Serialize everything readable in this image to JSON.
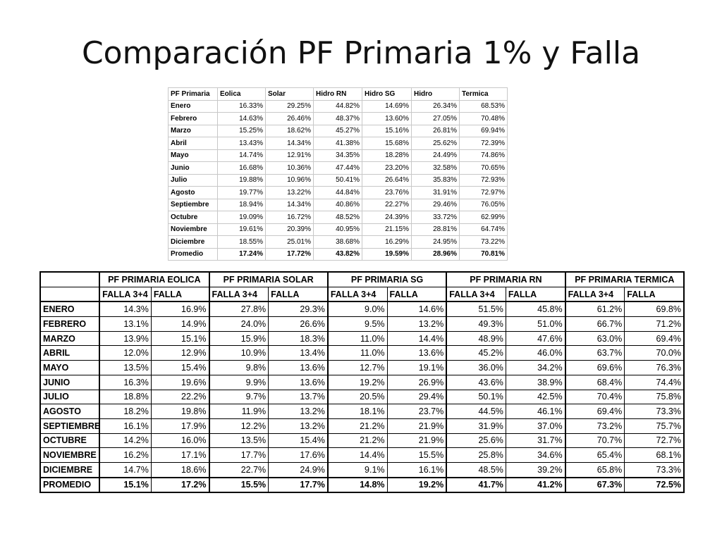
{
  "title": "Comparación PF Primaria 1% y Falla",
  "table1": {
    "headers": [
      "PF Primaria",
      "Eolica",
      "Solar",
      "Hidro RN",
      "Hidro SG",
      "Hidro",
      "Termica"
    ],
    "rows": [
      [
        "Enero",
        "16.33%",
        "29.25%",
        "44.82%",
        "14.69%",
        "26.34%",
        "68.53%"
      ],
      [
        "Febrero",
        "14.63%",
        "26.46%",
        "48.37%",
        "13.60%",
        "27.05%",
        "70.48%"
      ],
      [
        "Marzo",
        "15.25%",
        "18.62%",
        "45.27%",
        "15.16%",
        "26.81%",
        "69.94%"
      ],
      [
        "Abril",
        "13.43%",
        "14.34%",
        "41.38%",
        "15.68%",
        "25.62%",
        "72.39%"
      ],
      [
        "Mayo",
        "14.74%",
        "12.91%",
        "34.35%",
        "18.28%",
        "24.49%",
        "74.86%"
      ],
      [
        "Junio",
        "16.68%",
        "10.36%",
        "47.44%",
        "23.20%",
        "32.58%",
        "70.65%"
      ],
      [
        "Julio",
        "19.88%",
        "10.96%",
        "50.41%",
        "26.64%",
        "35.83%",
        "72.93%"
      ],
      [
        "Agosto",
        "19.77%",
        "13.22%",
        "44.84%",
        "23.76%",
        "31.91%",
        "72.97%"
      ],
      [
        "Septiembre",
        "18.94%",
        "14.34%",
        "40.86%",
        "22.27%",
        "29.46%",
        "76.05%"
      ],
      [
        "Octubre",
        "19.09%",
        "16.72%",
        "48.52%",
        "24.39%",
        "33.72%",
        "62.99%"
      ],
      [
        "Noviembre",
        "19.61%",
        "20.39%",
        "40.95%",
        "21.15%",
        "28.81%",
        "64.74%"
      ],
      [
        "Diciembre",
        "18.55%",
        "25.01%",
        "38.68%",
        "16.29%",
        "24.95%",
        "73.22%"
      ]
    ],
    "average": [
      "Promedio",
      "17.24%",
      "17.72%",
      "43.82%",
      "19.59%",
      "28.96%",
      "70.81%"
    ]
  },
  "table2": {
    "groups": [
      "PF PRIMARIA EOLICA",
      "PF PRIMARIA SOLAR",
      "PF PRIMARIA SG",
      "PF PRIMARIA RN",
      "PF PRIMARIA TERMICA"
    ],
    "subheaders": [
      "FALLA 3+4",
      "FALLA"
    ],
    "rows": [
      [
        "ENERO",
        "14.3%",
        "16.9%",
        "27.8%",
        "29.3%",
        "9.0%",
        "14.6%",
        "51.5%",
        "45.8%",
        "61.2%",
        "69.8%"
      ],
      [
        "FEBRERO",
        "13.1%",
        "14.9%",
        "24.0%",
        "26.6%",
        "9.5%",
        "13.2%",
        "49.3%",
        "51.0%",
        "66.7%",
        "71.2%"
      ],
      [
        "MARZO",
        "13.9%",
        "15.1%",
        "15.9%",
        "18.3%",
        "11.0%",
        "14.4%",
        "48.9%",
        "47.6%",
        "63.0%",
        "69.4%"
      ],
      [
        "ABRIL",
        "12.0%",
        "12.9%",
        "10.9%",
        "13.4%",
        "11.0%",
        "13.6%",
        "45.2%",
        "46.0%",
        "63.7%",
        "70.0%"
      ],
      [
        "MAYO",
        "13.5%",
        "15.4%",
        "9.8%",
        "13.6%",
        "12.7%",
        "19.1%",
        "36.0%",
        "34.2%",
        "69.6%",
        "76.3%"
      ],
      [
        "JUNIO",
        "16.3%",
        "19.6%",
        "9.9%",
        "13.6%",
        "19.2%",
        "26.9%",
        "43.6%",
        "38.9%",
        "68.4%",
        "74.4%"
      ],
      [
        "JULIO",
        "18.8%",
        "22.2%",
        "9.7%",
        "13.7%",
        "20.5%",
        "29.4%",
        "50.1%",
        "42.5%",
        "70.4%",
        "75.8%"
      ],
      [
        "AGOSTO",
        "18.2%",
        "19.8%",
        "11.9%",
        "13.2%",
        "18.1%",
        "23.7%",
        "44.5%",
        "46.1%",
        "69.4%",
        "73.3%"
      ],
      [
        "SEPTIEMBRE",
        "16.1%",
        "17.9%",
        "12.2%",
        "13.2%",
        "21.2%",
        "21.9%",
        "31.9%",
        "37.0%",
        "73.2%",
        "75.7%"
      ],
      [
        "OCTUBRE",
        "14.2%",
        "16.0%",
        "13.5%",
        "15.4%",
        "21.2%",
        "21.9%",
        "25.6%",
        "31.7%",
        "70.7%",
        "72.7%"
      ],
      [
        "NOVIEMBRE",
        "16.2%",
        "17.1%",
        "17.7%",
        "17.6%",
        "14.4%",
        "15.5%",
        "25.8%",
        "34.6%",
        "65.4%",
        "68.1%"
      ],
      [
        "DICIEMBRE",
        "14.7%",
        "18.6%",
        "22.7%",
        "24.9%",
        "9.1%",
        "16.1%",
        "48.5%",
        "39.2%",
        "65.8%",
        "73.3%"
      ]
    ],
    "average": [
      "PROMEDIO",
      "15.1%",
      "17.2%",
      "15.5%",
      "17.7%",
      "14.8%",
      "19.2%",
      "41.7%",
      "41.2%",
      "67.3%",
      "72.5%"
    ]
  }
}
